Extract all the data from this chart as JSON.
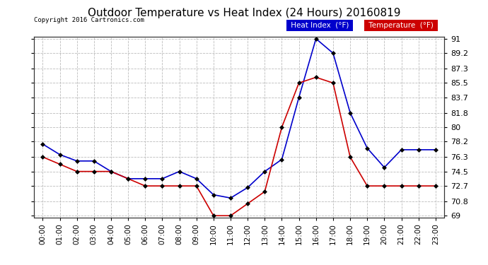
{
  "title": "Outdoor Temperature vs Heat Index (24 Hours) 20160819",
  "copyright": "Copyright 2016 Cartronics.com",
  "hours": [
    "00:00",
    "01:00",
    "02:00",
    "03:00",
    "04:00",
    "05:00",
    "06:00",
    "07:00",
    "08:00",
    "09:00",
    "10:00",
    "11:00",
    "12:00",
    "13:00",
    "14:00",
    "15:00",
    "16:00",
    "17:00",
    "18:00",
    "19:00",
    "20:00",
    "21:00",
    "22:00",
    "23:00"
  ],
  "heat_index": [
    77.9,
    76.6,
    75.8,
    75.8,
    74.5,
    73.6,
    73.6,
    73.6,
    74.5,
    73.6,
    71.6,
    71.2,
    72.5,
    74.5,
    76.0,
    83.7,
    91.0,
    89.2,
    81.8,
    77.4,
    75.0,
    77.2,
    77.2,
    77.2
  ],
  "temperature": [
    76.3,
    75.4,
    74.5,
    74.5,
    74.5,
    73.6,
    72.7,
    72.7,
    72.7,
    72.7,
    69.0,
    69.0,
    70.5,
    72.0,
    80.0,
    85.5,
    86.2,
    85.5,
    76.3,
    72.7,
    72.7,
    72.7,
    72.7,
    72.7
  ],
  "heat_index_color": "#0000cc",
  "temperature_color": "#cc0000",
  "ylim_min": 69.0,
  "ylim_max": 91.0,
  "yticks": [
    69.0,
    70.8,
    72.7,
    74.5,
    76.3,
    78.2,
    80.0,
    81.8,
    83.7,
    85.5,
    87.3,
    89.2,
    91.0
  ],
  "background_color": "#ffffff",
  "grid_color": "#bbbbbb",
  "title_fontsize": 11,
  "legend_heat_index_bg": "#0000cc",
  "legend_temperature_bg": "#cc0000",
  "legend_text_color": "#ffffff"
}
